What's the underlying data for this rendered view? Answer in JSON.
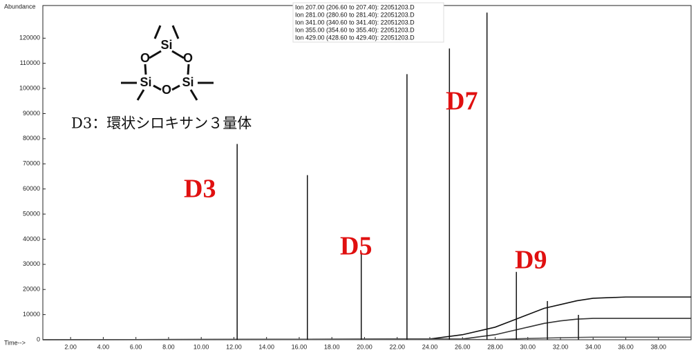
{
  "chart_data": {
    "type": "line",
    "y_label": "Abundance",
    "x_label": "Time-->",
    "legend_text": [
      "Ion 207.00 (206.60 to 207.40): 22051203.D",
      "Ion 281.00 (280.60 to 281.40): 22051203.D",
      "Ion 341.00 (340.60 to 341.40): 22051203.D",
      "Ion 355.00 (354.60 to 355.40): 22051203.D",
      "Ion 429.00 (428.60 to 429.40): 22051203.D"
    ],
    "annotations": [
      "D3",
      "D5",
      "D7",
      "D9"
    ],
    "structure": {
      "atoms": [
        "Si",
        "O",
        "Si",
        "O",
        "Si",
        "O"
      ],
      "caption": "D3：環状シロキサン３量体"
    },
    "xlim": [
      0.3,
      40
    ],
    "ylim": [
      0,
      133000
    ],
    "xticks": [
      {
        "value": 2,
        "label": "2.00"
      },
      {
        "value": 4,
        "label": "4.00"
      },
      {
        "value": 6,
        "label": "6.00"
      },
      {
        "value": 8,
        "label": "8.00"
      },
      {
        "value": 10,
        "label": "10.00"
      },
      {
        "value": 12,
        "label": "12.00"
      },
      {
        "value": 14,
        "label": "14.00"
      },
      {
        "value": 16,
        "label": "16.00"
      },
      {
        "value": 18,
        "label": "18.00"
      },
      {
        "value": 20,
        "label": "20.00"
      },
      {
        "value": 22,
        "label": "22.00"
      },
      {
        "value": 24,
        "label": "24.00"
      },
      {
        "value": 26,
        "label": "26.00"
      },
      {
        "value": 28,
        "label": "28.00"
      },
      {
        "value": 30,
        "label": "30.00"
      },
      {
        "value": 32,
        "label": "32.00"
      },
      {
        "value": 34,
        "label": "34.00"
      },
      {
        "value": 36,
        "label": "36.00"
      },
      {
        "value": 38,
        "label": "38.00"
      }
    ],
    "yticks": [
      0,
      10000,
      20000,
      30000,
      40000,
      50000,
      60000,
      70000,
      80000,
      90000,
      100000,
      110000,
      120000
    ],
    "peaks": {
      "color": "#111111",
      "x": [
        12.2,
        16.5,
        19.8,
        22.6,
        25.2,
        27.5,
        29.3,
        31.2,
        33.1
      ],
      "values": [
        77900,
        65500,
        34700,
        105700,
        115900,
        130200,
        27000,
        15400,
        9900
      ]
    },
    "series": [
      {
        "color": "#111111",
        "x": [
          0.3,
          24,
          26,
          28,
          29,
          30,
          31,
          32,
          33,
          34,
          36,
          38,
          40
        ],
        "values": [
          0,
          300,
          2000,
          5000,
          7500,
          10000,
          12500,
          14000,
          15500,
          16500,
          17000,
          17000,
          17000
        ]
      },
      {
        "color": "#333333",
        "x": [
          0.3,
          26,
          28,
          29,
          30,
          31,
          32,
          33,
          34,
          36,
          38,
          40
        ],
        "values": [
          0,
          300,
          2000,
          3500,
          5000,
          6500,
          7500,
          8200,
          8500,
          8500,
          8500,
          8500
        ]
      },
      {
        "color": "#555555",
        "x": [
          0.3,
          28,
          30,
          32,
          34,
          36,
          40
        ],
        "values": [
          0,
          100,
          500,
          800,
          1000,
          1000,
          1000
        ]
      }
    ]
  }
}
